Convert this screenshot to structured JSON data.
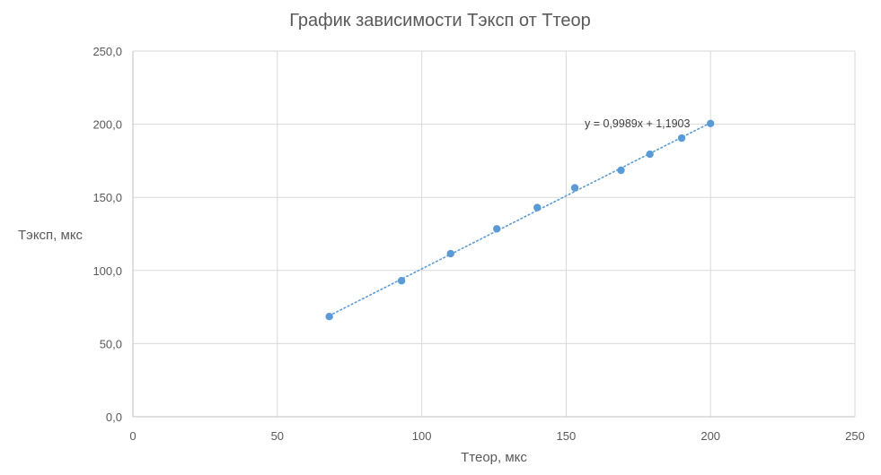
{
  "chart_data": {
    "type": "scatter",
    "title": "График зависимости Тэксп от Ттеор",
    "xlabel": "Ттеор, мкс",
    "ylabel": "Тэксп, мкс",
    "xlim": [
      0,
      250
    ],
    "ylim": [
      0,
      250
    ],
    "x_ticks": [
      0,
      50,
      100,
      150,
      200,
      250
    ],
    "y_ticks": [
      0,
      50,
      100,
      150,
      200,
      250
    ],
    "x_tick_labels": [
      "0",
      "50",
      "100",
      "150",
      "200",
      "250"
    ],
    "y_tick_labels": [
      "0,0",
      "50,0",
      "100,0",
      "150,0",
      "200,0",
      "250,0"
    ],
    "grid": true,
    "points": [
      {
        "x": 68,
        "y": 68.5
      },
      {
        "x": 93,
        "y": 93.0
      },
      {
        "x": 110,
        "y": 111.5
      },
      {
        "x": 126,
        "y": 128.5
      },
      {
        "x": 140,
        "y": 143.0
      },
      {
        "x": 153,
        "y": 156.5
      },
      {
        "x": 169,
        "y": 168.5
      },
      {
        "x": 179,
        "y": 179.5
      },
      {
        "x": 190,
        "y": 190.5
      },
      {
        "x": 200,
        "y": 200.5
      }
    ],
    "trendline": {
      "type": "linear",
      "slope": 0.9989,
      "intercept": 1.1903,
      "x_range": [
        68,
        200
      ],
      "style": "dotted",
      "equation": "y = 0,9989x + 1,1903"
    },
    "colors": {
      "marker": "#5b9bd5",
      "trendline": "#5b9bd5",
      "grid": "#d9d9d9",
      "axis": "#bfbfbf",
      "text": "#595959"
    }
  }
}
